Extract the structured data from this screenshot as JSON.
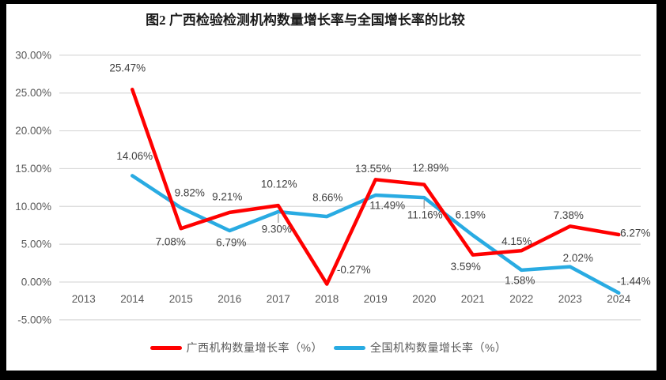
{
  "frame": {
    "background": "#000000",
    "plot_background": "#ffffff"
  },
  "title": "图2 广西检验检测机构数量增长率与全国增长率的比较",
  "colors": {
    "guangxi_line": "#FF0000",
    "national_line": "#29ABE2",
    "gridline": "#D9D9D9",
    "axis_text": "#595959",
    "data_label_text": "#404040",
    "leader_line": "#A6A6A6"
  },
  "chart_data": {
    "type": "line",
    "categories": [
      "2013",
      "2014",
      "2015",
      "2016",
      "2017",
      "2018",
      "2019",
      "2020",
      "2021",
      "2022",
      "2023",
      "2024"
    ],
    "series": [
      {
        "name": "广西机构数量增长率（%）",
        "color": "#FF0000",
        "values": [
          null,
          25.47,
          7.08,
          9.21,
          10.12,
          -0.27,
          13.55,
          12.89,
          3.59,
          4.15,
          7.38,
          6.27
        ],
        "labels": [
          null,
          "25.47%",
          "7.08%",
          "9.21%",
          "10.12%",
          "-0.27%",
          "13.55%",
          "12.89%",
          "3.59%",
          "4.15%",
          "7.38%",
          "6.27%"
        ]
      },
      {
        "name": "全国机构数量增长率（%）",
        "color": "#29ABE2",
        "values": [
          null,
          14.06,
          9.82,
          6.79,
          9.3,
          8.66,
          11.49,
          11.16,
          6.19,
          1.58,
          2.02,
          -1.44
        ],
        "labels": [
          null,
          "14.06%",
          "9.82%",
          "6.79%",
          "9.30%",
          "8.66%",
          "11.49%",
          "11.16%",
          "6.19%",
          "1.58%",
          "2.02%",
          "-1.44%"
        ]
      }
    ],
    "y_axis": {
      "ticks": [
        "30.00%",
        "25.00%",
        "20.00%",
        "15.00%",
        "10.00%",
        "5.00%",
        "0.00%",
        "-5.00%"
      ],
      "tick_values": [
        30,
        25,
        20,
        15,
        10,
        5,
        0,
        -5
      ],
      "max": 30,
      "min": -5,
      "step": 5
    },
    "grid": true,
    "legend_position": "bottom"
  }
}
